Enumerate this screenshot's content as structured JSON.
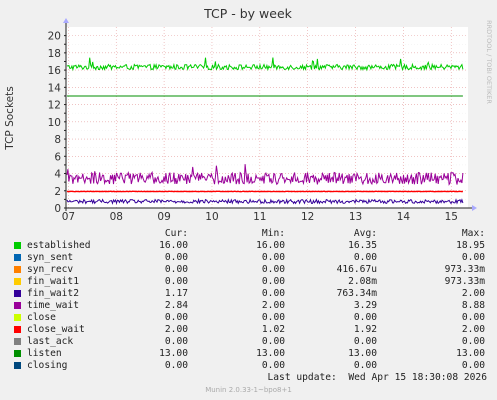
{
  "chart_data": {
    "type": "line",
    "title": "TCP - by week",
    "ylabel": "TCP Sockets",
    "watermark": "RRDTOOL / TOBI OETIKER",
    "ylim": [
      0,
      21
    ],
    "yticks": [
      "0",
      "2",
      "4",
      "6",
      "8",
      "10",
      "12",
      "14",
      "16",
      "18",
      "20"
    ],
    "xlim": [
      6.95,
      15.35
    ],
    "xticks": [
      "07",
      "08",
      "09",
      "10",
      "11",
      "12",
      "13",
      "14",
      "15"
    ],
    "grid": true,
    "series": [
      {
        "name": "established",
        "color": "#00cc00",
        "base": 16.35,
        "jitter": 0.6,
        "show_line": true
      },
      {
        "name": "syn_sent",
        "color": "#0066b3",
        "base": 0,
        "jitter": 0,
        "show_line": false
      },
      {
        "name": "syn_recv",
        "color": "#ff8000",
        "base": 0,
        "jitter": 0,
        "show_line": false
      },
      {
        "name": "fin_wait1",
        "color": "#ffcc00",
        "base": 0,
        "jitter": 0,
        "show_line": false
      },
      {
        "name": "fin_wait2",
        "color": "#330099",
        "base": 0.76,
        "jitter": 0.45,
        "show_line": true
      },
      {
        "name": "close",
        "color": "#990099",
        "base": 0,
        "jitter": 0,
        "show_line": false
      },
      {
        "name": "close_wait",
        "color": "#ccff00",
        "base": 0,
        "jitter": 0,
        "show_line": false
      },
      {
        "name": "time_wait",
        "color": "#990099",
        "base": 3.29,
        "jitter": 1.4,
        "show_line": true
      },
      {
        "name": "close_wait_line",
        "color": "#ff0000",
        "base": 1.92,
        "jitter": 0.05,
        "show_line": true
      },
      {
        "name": "listen",
        "color": "#008f00",
        "base": 13.0,
        "jitter": 0,
        "show_line": true
      }
    ]
  },
  "legend": {
    "headers": {
      "cur": "Cur:",
      "min": "Min:",
      "avg": "Avg:",
      "max": "Max:"
    },
    "rows": [
      {
        "name": "established",
        "color": "#00cc00",
        "cur": "16.00",
        "min": "16.00",
        "avg": "16.35",
        "max": "18.95"
      },
      {
        "name": "syn_sent",
        "color": "#0066b3",
        "cur": "0.00",
        "min": "0.00",
        "avg": "0.00",
        "max": "0.00"
      },
      {
        "name": "syn_recv",
        "color": "#ff8000",
        "cur": "0.00",
        "min": "0.00",
        "avg": "416.67u",
        "max": "973.33m"
      },
      {
        "name": "fin_wait1",
        "color": "#ffcc00",
        "cur": "0.00",
        "min": "0.00",
        "avg": "2.08m",
        "max": "973.33m"
      },
      {
        "name": "fin_wait2",
        "color": "#330099",
        "cur": "1.17",
        "min": "0.00",
        "avg": "763.34m",
        "max": "2.00"
      },
      {
        "name": "time_wait",
        "color": "#990099",
        "cur": "2.84",
        "min": "2.00",
        "avg": "3.29",
        "max": "8.88"
      },
      {
        "name": "close",
        "color": "#ccff00",
        "cur": "0.00",
        "min": "0.00",
        "avg": "0.00",
        "max": "0.00"
      },
      {
        "name": "close_wait",
        "color": "#ff0000",
        "cur": "2.00",
        "min": "1.02",
        "avg": "1.92",
        "max": "2.00"
      },
      {
        "name": "last_ack",
        "color": "#808080",
        "cur": "0.00",
        "min": "0.00",
        "avg": "0.00",
        "max": "0.00"
      },
      {
        "name": "listen",
        "color": "#008f00",
        "cur": "13.00",
        "min": "13.00",
        "avg": "13.00",
        "max": "13.00"
      },
      {
        "name": "closing",
        "color": "#00487d",
        "cur": "0.00",
        "min": "0.00",
        "avg": "0.00",
        "max": "0.00"
      }
    ]
  },
  "footer": {
    "last_update": "Last update:  Wed Apr 15 18:30:08 2026",
    "credit": "Munin 2.0.33-1~bpo8+1"
  }
}
